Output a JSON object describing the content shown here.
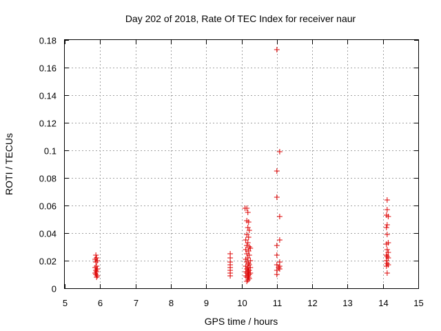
{
  "chart_data": {
    "type": "scatter",
    "title": "Day 202 of 2018, Rate Of TEC Index for receiver naur",
    "xlabel": "GPS time / hours",
    "ylabel": "ROTI / TECUs",
    "xlim": [
      5,
      15
    ],
    "ylim": [
      0,
      0.18
    ],
    "x_ticks": [
      5,
      6,
      7,
      8,
      9,
      10,
      11,
      12,
      13,
      14,
      15
    ],
    "y_ticks": [
      0,
      0.02,
      0.04,
      0.06,
      0.08,
      0.1,
      0.12,
      0.14,
      0.16,
      0.18
    ],
    "x_tick_labels": [
      "5",
      "6",
      "7",
      "8",
      "9",
      "10",
      "11",
      "12",
      "13",
      "14",
      "15"
    ],
    "y_tick_labels": [
      "0",
      "0.02",
      "0.04",
      "0.06",
      "0.08",
      "0.1",
      "0.12",
      "0.14",
      "0.16",
      "0.18"
    ],
    "grid": true,
    "marker": "+",
    "color": "#dd0000",
    "series": [
      {
        "points": [
          [
            5.88,
            0.024
          ],
          [
            5.9,
            0.022
          ],
          [
            5.86,
            0.021
          ],
          [
            5.92,
            0.02
          ],
          [
            5.88,
            0.019
          ],
          [
            5.9,
            0.016
          ],
          [
            5.86,
            0.015
          ],
          [
            5.92,
            0.014
          ],
          [
            5.88,
            0.013
          ],
          [
            5.9,
            0.012
          ],
          [
            5.86,
            0.011
          ],
          [
            5.88,
            0.01
          ],
          [
            5.92,
            0.009
          ],
          [
            5.9,
            0.008
          ],
          [
            9.68,
            0.025
          ],
          [
            9.68,
            0.022
          ],
          [
            9.68,
            0.019
          ],
          [
            9.68,
            0.017
          ],
          [
            9.68,
            0.015
          ],
          [
            9.68,
            0.013
          ],
          [
            9.68,
            0.011
          ],
          [
            9.68,
            0.009
          ],
          [
            10.1,
            0.058
          ],
          [
            10.15,
            0.058
          ],
          [
            10.18,
            0.055
          ],
          [
            10.15,
            0.049
          ],
          [
            10.2,
            0.048
          ],
          [
            10.18,
            0.044
          ],
          [
            10.22,
            0.042
          ],
          [
            10.15,
            0.039
          ],
          [
            10.2,
            0.037
          ],
          [
            10.12,
            0.035
          ],
          [
            10.18,
            0.033
          ],
          [
            10.15,
            0.031
          ],
          [
            10.22,
            0.03
          ],
          [
            10.25,
            0.029
          ],
          [
            10.12,
            0.028
          ],
          [
            10.2,
            0.027
          ],
          [
            10.15,
            0.025
          ],
          [
            10.22,
            0.024
          ],
          [
            10.18,
            0.022
          ],
          [
            10.12,
            0.021
          ],
          [
            10.25,
            0.02
          ],
          [
            10.15,
            0.019
          ],
          [
            10.2,
            0.018
          ],
          [
            10.22,
            0.017
          ],
          [
            10.12,
            0.016
          ],
          [
            10.18,
            0.015
          ],
          [
            10.25,
            0.015
          ],
          [
            10.15,
            0.014
          ],
          [
            10.2,
            0.013
          ],
          [
            10.22,
            0.013
          ],
          [
            10.12,
            0.012
          ],
          [
            10.18,
            0.012
          ],
          [
            10.25,
            0.011
          ],
          [
            10.15,
            0.011
          ],
          [
            10.2,
            0.01
          ],
          [
            10.22,
            0.01
          ],
          [
            10.12,
            0.009
          ],
          [
            10.18,
            0.009
          ],
          [
            10.15,
            0.008
          ],
          [
            10.2,
            0.008
          ],
          [
            10.22,
            0.007
          ],
          [
            10.18,
            0.006
          ],
          [
            10.15,
            0.005
          ],
          [
            11.0,
            0.173
          ],
          [
            11.08,
            0.099
          ],
          [
            11.0,
            0.085
          ],
          [
            11.0,
            0.066
          ],
          [
            11.08,
            0.052
          ],
          [
            11.08,
            0.035
          ],
          [
            11.0,
            0.031
          ],
          [
            11.0,
            0.024
          ],
          [
            11.08,
            0.019
          ],
          [
            11.0,
            0.017
          ],
          [
            11.08,
            0.016
          ],
          [
            11.05,
            0.015
          ],
          [
            11.08,
            0.014
          ],
          [
            11.0,
            0.013
          ],
          [
            11.0,
            0.01
          ],
          [
            14.12,
            0.064
          ],
          [
            14.12,
            0.057
          ],
          [
            14.1,
            0.053
          ],
          [
            14.15,
            0.052
          ],
          [
            14.12,
            0.046
          ],
          [
            14.1,
            0.044
          ],
          [
            14.12,
            0.039
          ],
          [
            14.15,
            0.033
          ],
          [
            14.1,
            0.032
          ],
          [
            14.12,
            0.028
          ],
          [
            14.15,
            0.026
          ],
          [
            14.1,
            0.024
          ],
          [
            14.12,
            0.023
          ],
          [
            14.15,
            0.022
          ],
          [
            14.1,
            0.02
          ],
          [
            14.12,
            0.018
          ],
          [
            14.15,
            0.017
          ],
          [
            14.1,
            0.016
          ],
          [
            14.12,
            0.011
          ]
        ]
      }
    ]
  }
}
